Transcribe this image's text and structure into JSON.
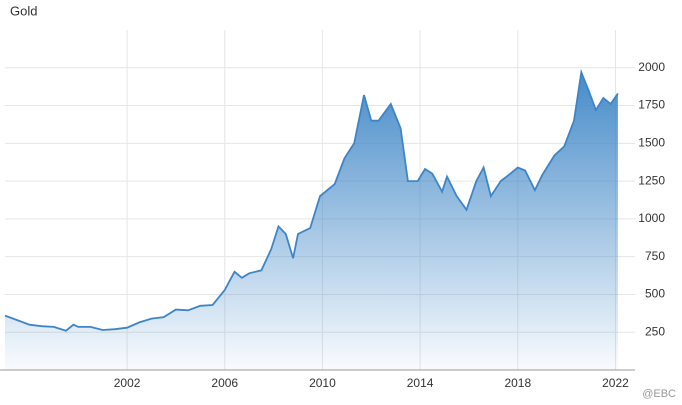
{
  "chart_data": {
    "type": "area",
    "title": "Gold",
    "watermark": "@EBC",
    "x": [
      1997,
      1997.5,
      1998,
      1998.5,
      1999,
      1999.5,
      1999.8,
      2000,
      2000.5,
      2001,
      2001.5,
      2002,
      2002.5,
      2003,
      2003.5,
      2004,
      2004.5,
      2005,
      2005.5,
      2006,
      2006.4,
      2006.7,
      2007,
      2007.5,
      2007.9,
      2008.2,
      2008.5,
      2008.8,
      2009,
      2009.5,
      2009.9,
      2010.5,
      2010.9,
      2011.3,
      2011.7,
      2012,
      2012.3,
      2012.8,
      2013.2,
      2013.5,
      2013.9,
      2014.2,
      2014.5,
      2014.9,
      2015.1,
      2015.5,
      2015.9,
      2016.3,
      2016.6,
      2016.9,
      2017.3,
      2017.7,
      2018,
      2018.3,
      2018.7,
      2019,
      2019.5,
      2019.9,
      2020.3,
      2020.6,
      2020.9,
      2021.2,
      2021.5,
      2021.8,
      2022.1
    ],
    "values": [
      360,
      330,
      300,
      290,
      285,
      260,
      300,
      285,
      285,
      265,
      270,
      280,
      315,
      340,
      350,
      400,
      395,
      425,
      430,
      530,
      650,
      610,
      640,
      660,
      800,
      950,
      900,
      740,
      900,
      940,
      1150,
      1230,
      1400,
      1500,
      1820,
      1650,
      1650,
      1760,
      1600,
      1250,
      1250,
      1330,
      1300,
      1180,
      1280,
      1150,
      1060,
      1250,
      1340,
      1150,
      1250,
      1300,
      1340,
      1320,
      1190,
      1290,
      1420,
      1480,
      1650,
      1970,
      1850,
      1720,
      1800,
      1760,
      1830
    ],
    "color": "#3d85c6",
    "xlim": [
      1997,
      2022.8
    ],
    "xticks": [
      2002,
      2006,
      2010,
      2014,
      2018,
      2022
    ],
    "ylim": [
      0,
      2250
    ],
    "yticks": [
      250,
      500,
      750,
      1000,
      1250,
      1500,
      1750,
      2000
    ],
    "grid": true
  }
}
